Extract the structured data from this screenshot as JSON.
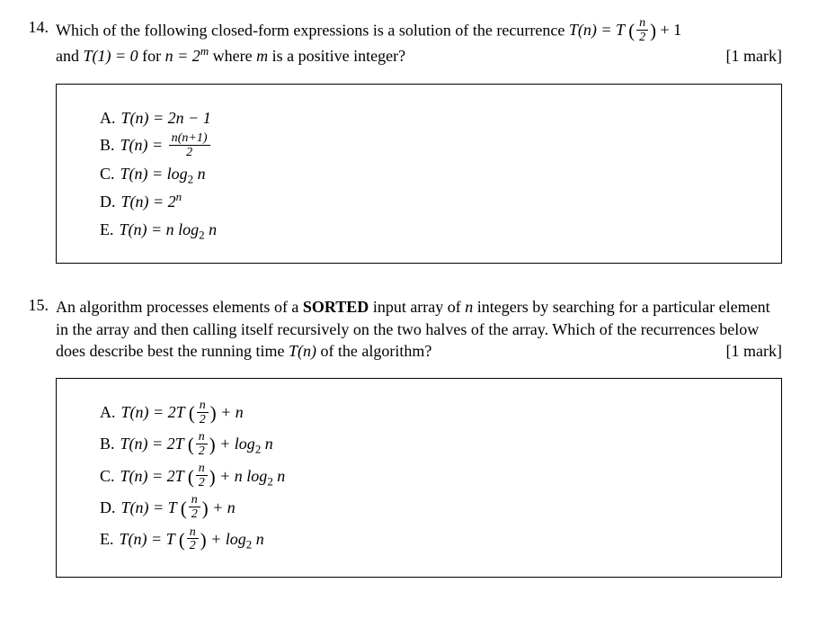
{
  "q14": {
    "number": "14.",
    "text_pre": "Which of the following closed-form expressions is a solution of the recurrence ",
    "recur_lhs": "T(n) = T",
    "recur_frac_n": "n",
    "recur_frac_d": "2",
    "recur_plus1": " + 1",
    "text_mid": "and ",
    "base_case": "T(1) = 0",
    "text_for": " for ",
    "ncond": "n = 2",
    "ncond_sup": "m",
    "text_post": " where ",
    "mvar": "m",
    "text_end": " is a positive integer?",
    "mark": "[1 mark]",
    "opts": {
      "A": {
        "label": "A.",
        "pre": "T(n) = 2n − 1"
      },
      "B": {
        "label": "B.",
        "pre": "T(n) = ",
        "frac_n": "n(n+1)",
        "frac_d": "2"
      },
      "C": {
        "label": "C.",
        "pre": "T(n) = log",
        "sub": "2",
        "post": " n"
      },
      "D": {
        "label": "D.",
        "pre": "T(n) = 2",
        "sup": "n"
      },
      "E": {
        "label": "E.",
        "pre": "T(n) = n log",
        "sub": "2",
        "post": " n"
      }
    }
  },
  "q15": {
    "number": "15.",
    "text_1": "An algorithm processes elements of a ",
    "sorted": "SORTED",
    "text_2": " input array of ",
    "nvar": "n",
    "text_3": " integers by searching for a particular element in the array and then calling itself recursively on the two halves of the array. Which of the recurrences below does describe best the running time ",
    "tn": "T(n)",
    "text_4": " of the algorithm?",
    "mark": "[1 mark]",
    "opts": {
      "A": {
        "label": "A.",
        "pre": "T(n) = 2T",
        "frac_n": "n",
        "frac_d": "2",
        "post": " + n"
      },
      "B": {
        "label": "B.",
        "pre": "T(n) = 2T",
        "frac_n": "n",
        "frac_d": "2",
        "post": " + log",
        "sub": "2",
        "post2": " n"
      },
      "C": {
        "label": "C.",
        "pre": "T(n) = 2T",
        "frac_n": "n",
        "frac_d": "2",
        "post": " + n log",
        "sub": "2",
        "post2": " n"
      },
      "D": {
        "label": "D.",
        "pre": "T(n) = T",
        "frac_n": "n",
        "frac_d": "2",
        "post": " + n"
      },
      "E": {
        "label": "E.",
        "pre": "T(n) = T",
        "frac_n": "n",
        "frac_d": "2",
        "post": " + log",
        "sub": "2",
        "post2": " n"
      }
    }
  }
}
